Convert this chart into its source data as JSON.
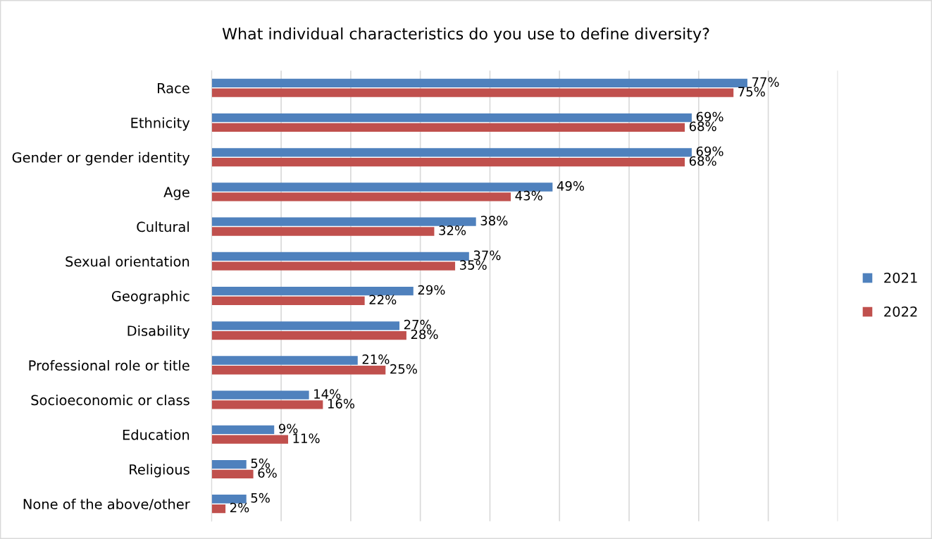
{
  "chart_data": {
    "type": "bar",
    "orientation": "horizontal",
    "title": "What individual characteristics do you use to define diversity?",
    "categories": [
      "Race",
      "Ethnicity",
      "Gender or gender identity",
      "Age",
      "Cultural",
      "Sexual orientation",
      "Geographic",
      "Disability",
      "Professional role or title",
      "Socioeconomic or class",
      "Education",
      "Religious",
      "None of the above/other"
    ],
    "series": [
      {
        "name": "2021",
        "color": "#4f81bd",
        "values": [
          77,
          69,
          69,
          49,
          38,
          37,
          29,
          27,
          21,
          14,
          9,
          5,
          5
        ],
        "value_labels": [
          "77%",
          "69%",
          "69%",
          "49%",
          "38%",
          "37%",
          "29%",
          "27%",
          "21%",
          "14%",
          "9%",
          "5%",
          "5%"
        ]
      },
      {
        "name": "2022",
        "color": "#c0504d",
        "values": [
          75,
          68,
          68,
          43,
          32,
          35,
          22,
          28,
          25,
          16,
          11,
          6,
          2
        ],
        "value_labels": [
          "75%",
          "68%",
          "68%",
          "43%",
          "32%",
          "35%",
          "22%",
          "28%",
          "25%",
          "16%",
          "11%",
          "6%",
          "2%"
        ]
      }
    ],
    "xlim": [
      0,
      90
    ],
    "xticks": [
      {
        "value": 0,
        "label": null
      },
      {
        "value": 10,
        "label": null
      },
      {
        "value": 20,
        "label": null
      },
      {
        "value": 30,
        "label": null
      },
      {
        "value": 40,
        "label": null
      },
      {
        "value": 50,
        "label": null
      },
      {
        "value": 60,
        "label": null
      },
      {
        "value": 70,
        "label": null
      },
      {
        "value": 80,
        "label": null
      },
      {
        "value": 90,
        "label": null
      }
    ],
    "tick_labels": "y",
    "grid": "x",
    "legend": "right"
  }
}
